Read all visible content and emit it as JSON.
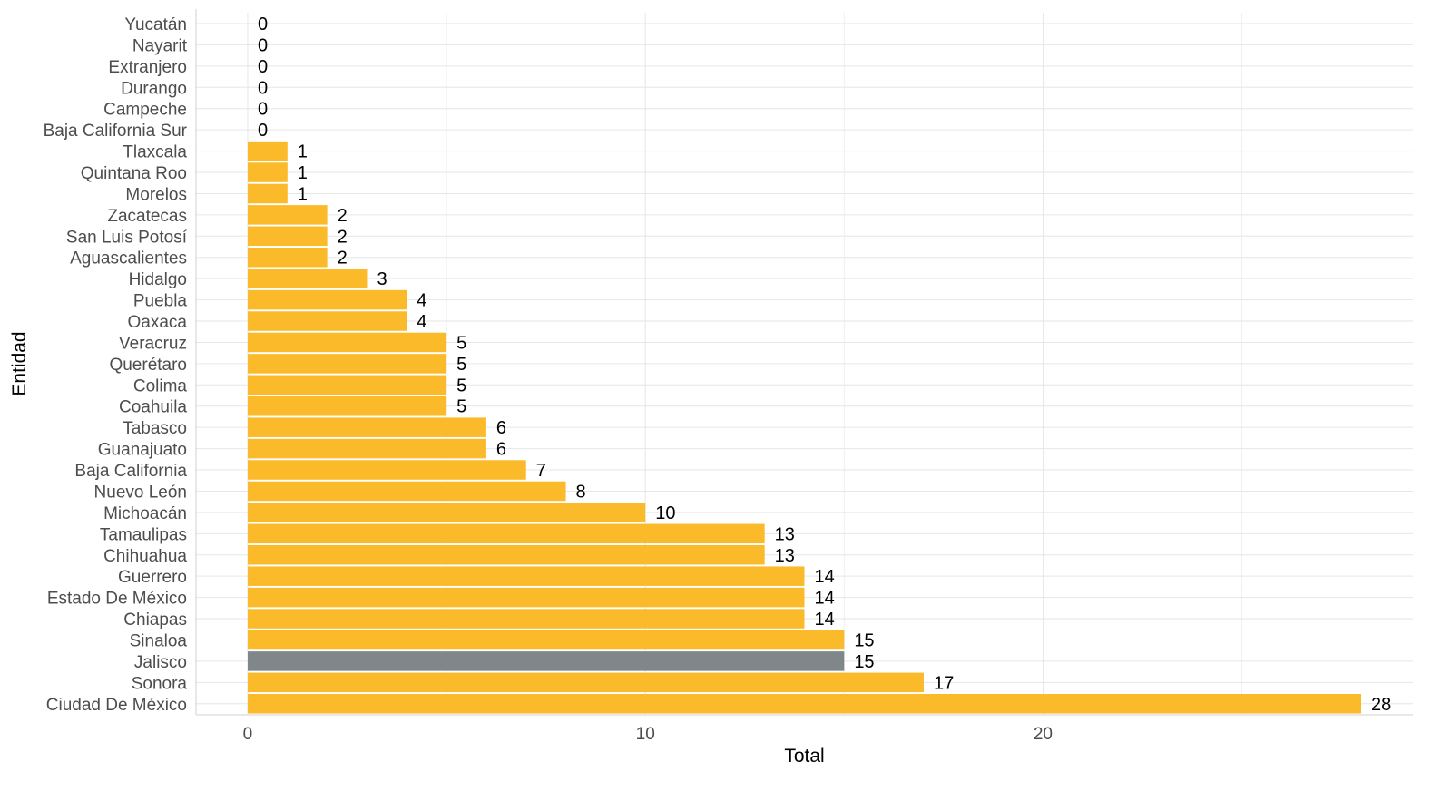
{
  "chart_data": {
    "type": "bar",
    "orientation": "horizontal",
    "xlabel": "Total",
    "ylabel": "Entidad",
    "xlim": [
      -1.3,
      29.3
    ],
    "x_ticks": [
      0,
      10,
      20
    ],
    "grid": true,
    "legend": "none",
    "bar_color": "#FBBA2A",
    "highlight_color": "#7F878A",
    "highlight_category": "Jalisco",
    "categories": [
      "Yucatán",
      "Nayarit",
      "Extranjero",
      "Durango",
      "Campeche",
      "Baja California Sur",
      "Tlaxcala",
      "Quintana Roo",
      "Morelos",
      "Zacatecas",
      "San Luis Potosí",
      "Aguascalientes",
      "Hidalgo",
      "Puebla",
      "Oaxaca",
      "Veracruz",
      "Querétaro",
      "Colima",
      "Coahuila",
      "Tabasco",
      "Guanajuato",
      "Baja California",
      "Nuevo León",
      "Michoacán",
      "Tamaulipas",
      "Chihuahua",
      "Guerrero",
      "Estado De México",
      "Chiapas",
      "Sinaloa",
      "Jalisco",
      "Sonora",
      "Ciudad De México"
    ],
    "values": [
      0,
      0,
      0,
      0,
      0,
      0,
      1,
      1,
      1,
      2,
      2,
      2,
      3,
      4,
      4,
      5,
      5,
      5,
      5,
      6,
      6,
      7,
      8,
      10,
      13,
      13,
      14,
      14,
      14,
      15,
      15,
      17,
      28
    ]
  }
}
